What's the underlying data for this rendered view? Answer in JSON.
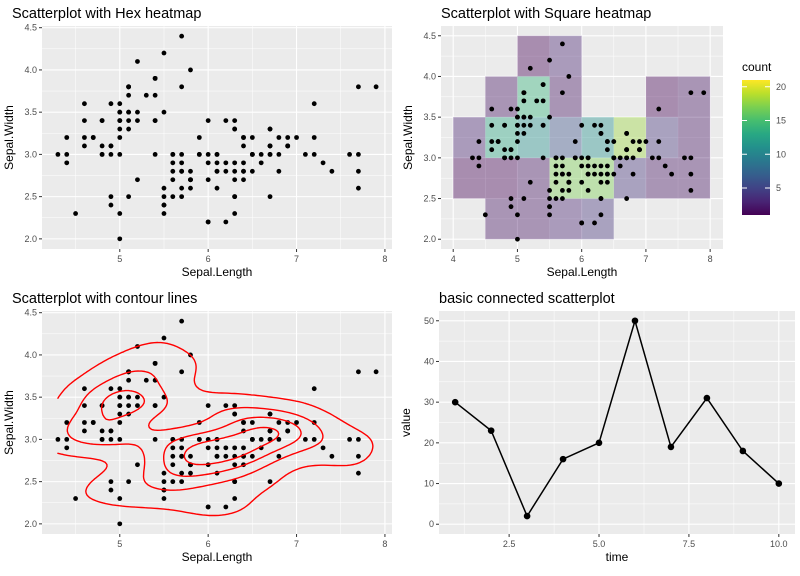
{
  "chart_data": [
    {
      "type": "scatter",
      "title": "Scatterplot with Hex heatmap",
      "xlabel": "Sepal.Length",
      "ylabel": "Sepal.Width",
      "xticks": [
        5,
        6,
        7,
        8
      ],
      "yticks": [
        "2.0",
        "2.5",
        "3.0",
        "3.5",
        "4.0",
        "4.5"
      ],
      "xlim": [
        4.12,
        8.08
      ],
      "ylim": [
        1.88,
        4.52
      ],
      "grid": true,
      "x": [
        5.1,
        4.9,
        4.7,
        4.6,
        5.0,
        5.4,
        4.6,
        5.0,
        4.4,
        4.9,
        5.4,
        4.8,
        4.8,
        4.3,
        5.8,
        5.7,
        5.4,
        5.1,
        5.7,
        5.1,
        5.4,
        5.1,
        4.6,
        5.1,
        4.8,
        5.0,
        5.0,
        5.2,
        5.2,
        4.7,
        4.8,
        5.4,
        5.2,
        5.5,
        4.9,
        5.0,
        5.5,
        4.9,
        4.4,
        5.1,
        5.0,
        4.5,
        4.4,
        5.0,
        5.1,
        4.8,
        5.1,
        4.6,
        5.3,
        5.0,
        7.0,
        6.4,
        6.9,
        5.5,
        6.5,
        5.7,
        6.3,
        4.9,
        6.6,
        5.2,
        5.0,
        5.9,
        6.0,
        6.1,
        5.6,
        6.7,
        5.6,
        5.8,
        6.2,
        5.6,
        5.9,
        6.1,
        6.3,
        6.1,
        6.4,
        6.6,
        6.8,
        6.7,
        6.0,
        5.7,
        5.5,
        5.5,
        5.8,
        6.0,
        5.4,
        6.0,
        6.7,
        6.3,
        5.6,
        5.5,
        5.5,
        6.1,
        5.8,
        5.0,
        5.6,
        5.7,
        5.7,
        6.2,
        5.1,
        5.7,
        6.3,
        5.8,
        7.1,
        6.3,
        6.5,
        7.6,
        4.9,
        7.3,
        6.7,
        7.2,
        6.5,
        6.4,
        6.8,
        5.7,
        5.8,
        6.4,
        6.5,
        7.7,
        7.7,
        6.0,
        6.9,
        5.6,
        7.7,
        6.3,
        6.7,
        7.2,
        6.2,
        6.1,
        6.4,
        7.2,
        7.4,
        7.9,
        6.4,
        6.3,
        6.1,
        7.7,
        6.3,
        6.4,
        6.0,
        6.9,
        6.7,
        6.9,
        5.8,
        6.8,
        6.7,
        6.7,
        6.3,
        6.5,
        6.2,
        5.9
      ],
      "y": [
        3.5,
        3.0,
        3.2,
        3.1,
        3.6,
        3.9,
        3.4,
        3.4,
        2.9,
        3.1,
        3.7,
        3.4,
        3.0,
        3.0,
        4.0,
        4.4,
        3.9,
        3.5,
        3.8,
        3.8,
        3.4,
        3.7,
        3.6,
        3.3,
        3.4,
        3.0,
        3.4,
        3.5,
        3.4,
        3.2,
        3.1,
        3.4,
        4.1,
        4.2,
        3.1,
        3.2,
        3.5,
        3.6,
        3.0,
        3.4,
        3.5,
        2.3,
        3.2,
        3.5,
        3.8,
        3.0,
        3.8,
        3.2,
        3.7,
        3.3,
        3.2,
        3.2,
        3.1,
        2.3,
        2.8,
        2.8,
        3.3,
        2.4,
        2.9,
        2.7,
        2.0,
        3.0,
        2.2,
        2.9,
        2.9,
        3.1,
        3.0,
        2.7,
        2.2,
        2.5,
        3.2,
        2.8,
        2.5,
        2.8,
        2.9,
        3.0,
        2.8,
        3.0,
        2.9,
        2.6,
        2.4,
        2.4,
        2.7,
        2.7,
        3.0,
        3.4,
        3.1,
        2.3,
        3.0,
        2.5,
        2.6,
        3.0,
        2.6,
        2.3,
        2.7,
        3.0,
        2.9,
        2.9,
        2.5,
        2.8,
        3.3,
        2.7,
        3.0,
        2.9,
        3.0,
        3.0,
        2.5,
        2.9,
        2.5,
        3.6,
        3.2,
        2.7,
        3.0,
        2.5,
        2.8,
        3.2,
        3.0,
        3.8,
        2.6,
        2.2,
        3.2,
        2.8,
        2.8,
        2.7,
        3.3,
        3.2,
        2.8,
        3.0,
        2.8,
        3.0,
        2.8,
        3.8,
        2.8,
        2.8,
        2.6,
        3.0,
        3.4,
        3.1,
        3.0,
        3.1,
        3.1,
        3.1,
        2.7,
        3.2,
        3.3,
        3.0,
        2.5,
        3.0,
        3.4,
        3.0
      ]
    },
    {
      "type": "heatmap",
      "title": "Scatterplot with Square heatmap",
      "xlabel": "Sepal.Length",
      "ylabel": "Sepal.Width",
      "xticks": [
        4,
        5,
        6,
        7,
        8
      ],
      "yticks": [
        "2.0",
        "2.5",
        "3.0",
        "3.5",
        "4.0",
        "4.5"
      ],
      "xlim": [
        3.81,
        8.2
      ],
      "ylim": [
        1.88,
        4.62
      ],
      "grid": true,
      "bin_width": [
        0.5,
        0.5
      ],
      "fill_scale": "viridis",
      "legend": {
        "title": "count",
        "ticks": [
          5,
          10,
          15,
          20
        ],
        "range": [
          1,
          21
        ],
        "placement": "right"
      },
      "points": "same iris Sepal.Length / Sepal.Width as panel 1"
    },
    {
      "type": "scatter",
      "title": "Scatterplot with contour lines",
      "xlabel": "Sepal.Length",
      "ylabel": "Sepal.Width",
      "xticks": [
        5,
        6,
        7,
        8
      ],
      "yticks": [
        "2.0",
        "2.5",
        "3.0",
        "3.5",
        "4.0",
        "4.5"
      ],
      "xlim": [
        4.12,
        8.08
      ],
      "ylim": [
        1.88,
        4.52
      ],
      "grid": true,
      "contour_color": "#FF0000",
      "overlay": "2d density contours"
    },
    {
      "type": "line",
      "title": "basic connected scatterplot",
      "xlabel": "time",
      "ylabel": "value",
      "xticks": [
        "2.5",
        "5.0",
        "7.5",
        "10.0"
      ],
      "yticks": [
        0,
        10,
        20,
        30,
        40,
        50
      ],
      "xlim": [
        0.55,
        10.45
      ],
      "ylim": [
        -2.4,
        52.4
      ],
      "grid": true,
      "x": [
        1,
        2,
        3,
        4,
        5,
        6,
        7,
        8,
        9,
        10
      ],
      "values": [
        30,
        23,
        2,
        16,
        20,
        50,
        19,
        31,
        18,
        10
      ]
    }
  ],
  "colors": {
    "panel": "#EBEBEB",
    "grid": "#FFFFFF",
    "points": "#000000",
    "contour": "#FF0000"
  }
}
